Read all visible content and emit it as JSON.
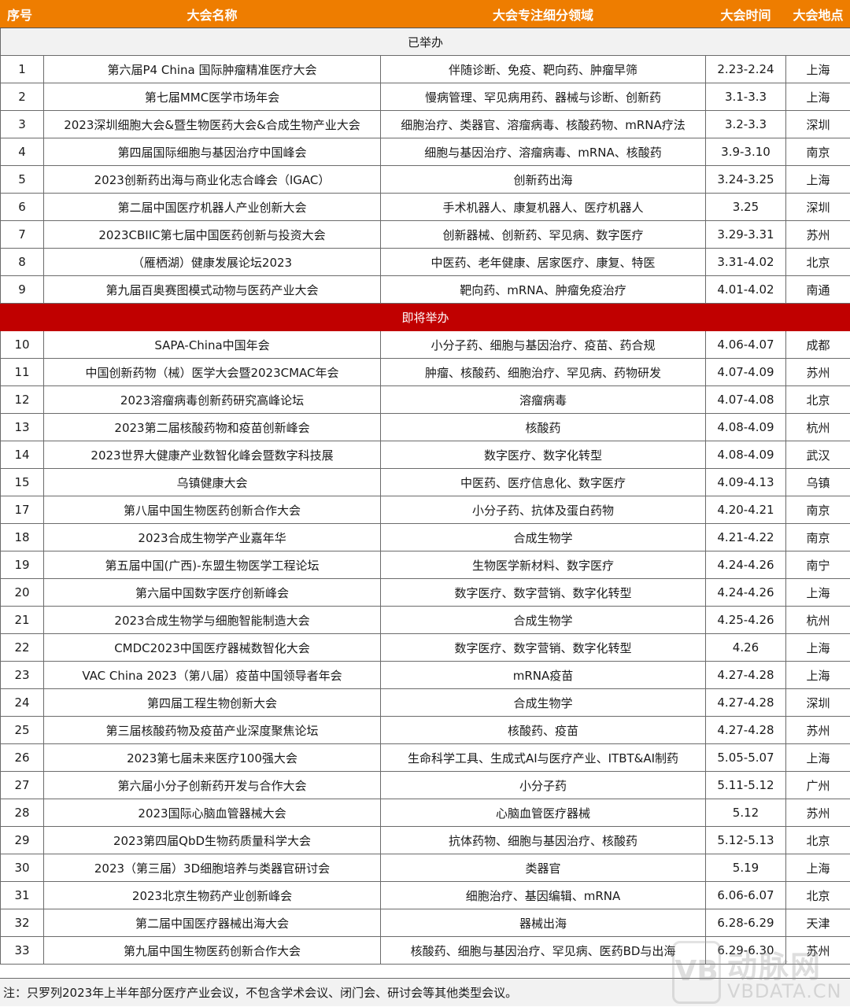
{
  "header": {
    "columns": [
      "序号",
      "大会名称",
      "大会专注细分领域",
      "大会时间",
      "大会地点"
    ]
  },
  "colors": {
    "header": "#EE7D00",
    "upcoming": "#C00000",
    "held": "#F2F2F2"
  },
  "groups": [
    {
      "label": "已举办",
      "rows": [
        [
          "1",
          "第六届P4 China 国际肿瘤精准医疗大会",
          "伴随诊断、免疫、靶向药、肿瘤早筛",
          "2.23-2.24",
          "上海"
        ],
        [
          "2",
          "第七届MMC医学市场年会",
          "慢病管理、罕见病用药、器械与诊断、创新药",
          "3.1-3.3",
          "上海"
        ],
        [
          "3",
          "2023深圳细胞大会&暨生物医药大会&合成生物产业大会",
          "细胞治疗、类器官、溶瘤病毒、核酸药物、mRNA疗法",
          "3.2-3.3",
          "深圳"
        ],
        [
          "4",
          "第四届国际细胞与基因治疗中国峰会",
          "细胞与基因治疗、溶瘤病毒、mRNA、核酸药",
          "3.9-3.10",
          "南京"
        ],
        [
          "5",
          "2023创新药出海与商业化志合峰会（IGAC）",
          "创新药出海",
          "3.24-3.25",
          "上海"
        ],
        [
          "6",
          "第二届中国医疗机器人产业创新大会",
          "手术机器人、康复机器人、医疗机器人",
          "3.25",
          "深圳"
        ],
        [
          "7",
          "2023CBIIC第七届中国医药创新与投资大会",
          "创新器械、创新药、罕见病、数字医疗",
          "3.29-3.31",
          "苏州"
        ],
        [
          "8",
          "（雁栖湖）健康发展论坛2023",
          "中医药、老年健康、居家医疗、康复、特医",
          "3.31-4.02",
          "北京"
        ],
        [
          "9",
          "第九届百奥赛图模式动物与医药产业大会",
          "靶向药、mRNA、肿瘤免疫治疗",
          "4.01-4.02",
          "南通"
        ]
      ]
    },
    {
      "label": "即将举办",
      "rows": [
        [
          "10",
          "SAPA-China中国年会",
          "小分子药、细胞与基因治疗、疫苗、药合规",
          "4.06-4.07",
          "成都"
        ],
        [
          "11",
          "中国创新药物（械）医学大会暨2023CMAC年会",
          "肿瘤、核酸药、细胞治疗、罕见病、药物研发",
          "4.07-4.09",
          "苏州"
        ],
        [
          "12",
          "2023溶瘤病毒创新药研究高峰论坛",
          "溶瘤病毒",
          "4.07-4.08",
          "北京"
        ],
        [
          "13",
          "2023第二届核酸药物和疫苗创新峰会",
          "核酸药",
          "4.08-4.09",
          "杭州"
        ],
        [
          "14",
          "2023世界大健康产业数智化峰会暨数字科技展",
          "数字医疗、数字化转型",
          "4.08-4.09",
          "武汉"
        ],
        [
          "15",
          "乌镇健康大会",
          "中医药、医疗信息化、数字医疗",
          "4.09-4.13",
          "乌镇"
        ],
        [
          "17",
          "第八届中国生物医药创新合作大会",
          "小分子药、抗体及蛋白药物",
          "4.20-4.21",
          "南京"
        ],
        [
          "18",
          "2023合成生物学产业嘉年华",
          "合成生物学",
          "4.21-4.22",
          "南京"
        ],
        [
          "19",
          "第五届中国(广西)-东盟生物医学工程论坛",
          "生物医学新材料、数字医疗",
          "4.24-4.26",
          "南宁"
        ],
        [
          "20",
          "第六届中国数字医疗创新峰会",
          "数字医疗、数字营销、数字化转型",
          "4.24-4.26",
          "上海"
        ],
        [
          "21",
          "2023合成生物学与细胞智能制造大会",
          "合成生物学",
          "4.25-4.26",
          "杭州"
        ],
        [
          "22",
          "CMDC2023中国医疗器械数智化大会",
          "数字医疗、数字营销、数字化转型",
          "4.26",
          "上海"
        ],
        [
          "23",
          "VAC China 2023（第八届）疫苗中国领导者年会",
          "mRNA疫苗",
          "4.27-4.28",
          "上海"
        ],
        [
          "24",
          "第四届工程生物创新大会",
          "合成生物学",
          "4.27-4.28",
          "深圳"
        ],
        [
          "25",
          "第三届核酸药物及疫苗产业深度聚焦论坛",
          "核酸药、疫苗",
          "4.27-4.28",
          "苏州"
        ],
        [
          "26",
          "2023第七届未来医疗100强大会",
          "生命科学工具、生成式AI与医疗产业、ITBT&AI制药",
          "5.05-5.07",
          "上海"
        ],
        [
          "27",
          "第六届小分子创新药开发与合作大会",
          "小分子药",
          "5.11-5.12",
          "广州"
        ],
        [
          "28",
          "2023国际心脑血管器械大会",
          "心脑血管医疗器械",
          "5.12",
          "苏州"
        ],
        [
          "29",
          "2023第四届QbD生物药质量科学大会",
          "抗体药物、细胞与基因治疗、核酸药",
          "5.12-5.13",
          "北京"
        ],
        [
          "30",
          "2023（第三届）3D细胞培养与类器官研讨会",
          "类器官",
          "5.19",
          "上海"
        ],
        [
          "31",
          "2023北京生物药产业创新峰会",
          "细胞治疗、基因编辑、mRNA",
          "6.06-6.07",
          "北京"
        ],
        [
          "32",
          "第二届中国医疗器械出海大会",
          "器械出海",
          "6.28-6.29",
          "天津"
        ],
        [
          "33",
          "第九届中国生物医药创新合作大会",
          "核酸药、细胞与基因治疗、罕见病、医药BD与出海",
          "6.29-6.30",
          "苏州"
        ]
      ]
    }
  ],
  "footer": {
    "note": "注：只罗列2023年上半年部分医疗产业会议，不包含学术会议、闭门会、研讨会等其他类型会议。"
  },
  "watermark": {
    "mark": "VB",
    "name": "动脉网",
    "domain": "VBDATA.CN"
  }
}
